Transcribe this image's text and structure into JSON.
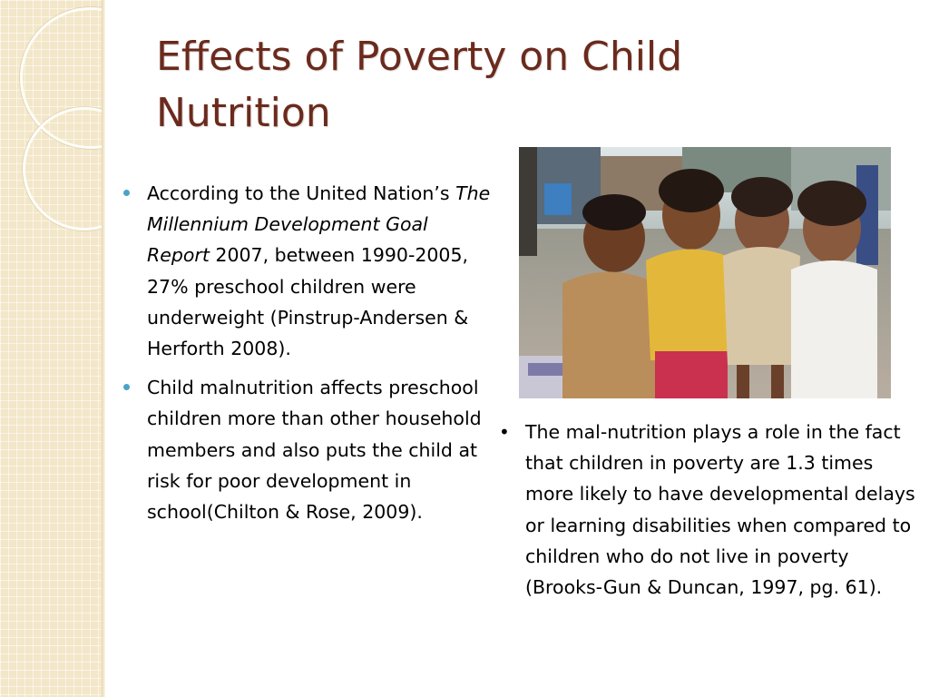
{
  "slide": {
    "title": "Effects of Poverty on Child Nutrition",
    "accent_colors": {
      "title": "#6b2a1c",
      "bullet": "#4ba3c7",
      "strip": "#f3e7c9"
    },
    "left_bullets": [
      {
        "part1": "According to the United Nation’s ",
        "italic": "The Millennium Development Goal Report",
        "part2": " 2007, between 1990-2005, 27% preschool children were underweight (Pinstrup-Andersen & Herforth 2008)."
      },
      {
        "text": "Child malnutrition affects preschool children more than other household members and also puts the child at risk for poor development in school(Chilton & Rose, 2009)."
      }
    ],
    "photo": {
      "icon": "children-photo"
    },
    "right_bullet": {
      "marker": "•",
      "text": "The mal-nutrition plays a role in the fact that children in poverty are 1.3 times more likely to have developmental delays or learning disabilities when compared to children who do not live in poverty (Brooks-Gun & Duncan, 1997, pg. 61)."
    }
  }
}
